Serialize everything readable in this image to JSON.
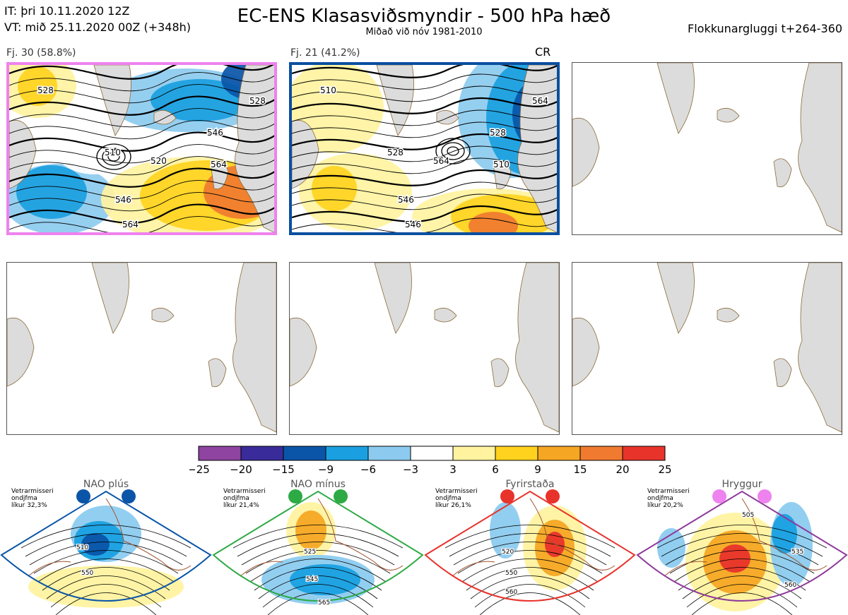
{
  "header": {
    "it_line": "IT: þri 10.11.2020 12Z",
    "vt_line": "VT: mið 25.11.2020 00Z  (+348h)",
    "title": "EC-ENS Klasasviðsmyndir - 500 hPa hæð",
    "subtitle": "Miðað við nóv 1981-2010",
    "window": "Flokkunargluggi t+264-360"
  },
  "panels": [
    {
      "label": "Fj. 30 (58.8%)",
      "tag": "",
      "border": "#ee82ee",
      "contours": [
        "528",
        "510",
        "546",
        "520",
        "564",
        "546",
        "564",
        "528"
      ]
    },
    {
      "label": "Fj. 21 (41.2%)",
      "tag": "CR",
      "border": "#0a4fa0",
      "contours": [
        "510",
        "528",
        "546",
        "564",
        "510",
        "528",
        "546",
        "564"
      ]
    },
    {
      "label": "",
      "tag": "",
      "border": "#555555",
      "contours": []
    },
    {
      "label": "",
      "tag": "",
      "border": "#555555",
      "contours": []
    },
    {
      "label": "",
      "tag": "",
      "border": "#555555",
      "contours": []
    },
    {
      "label": "",
      "tag": "",
      "border": "#555555",
      "contours": []
    }
  ],
  "colorbar": {
    "ticks": [
      "-25",
      "-20",
      "-15",
      "-9",
      "-6",
      "-3",
      "3",
      "6",
      "9",
      "15",
      "20",
      "25"
    ],
    "colors": [
      "#8e44a0",
      "#3a2b9a",
      "#0a55a8",
      "#1aa0e0",
      "#8ccbef",
      "#ffffff",
      "#fff3a0",
      "#ffd21e",
      "#f5a623",
      "#f07a30",
      "#e8332b",
      "#b0121b"
    ]
  },
  "regimes": [
    {
      "name": "NAO plús",
      "note_lines": [
        "Vetrarmisseri",
        "ondjfma",
        "líkur 32,3%"
      ],
      "border": "#0a55a8",
      "dot": "#0a55a8",
      "contours": [
        "510",
        "550"
      ]
    },
    {
      "name": "NAO mínus",
      "note_lines": [
        "Vetrarmisseri",
        "ondjfma",
        "líkur 21,4%"
      ],
      "border": "#2eaa45",
      "dot": "#2eaa45",
      "contours": [
        "525",
        "545",
        "565"
      ]
    },
    {
      "name": "Fyrirstaða",
      "note_lines": [
        "Vetrarmisseri",
        "ondjfma",
        "líkur 26,1%"
      ],
      "border": "#e8332b",
      "dot": "#e8332b",
      "contours": [
        "520",
        "550",
        "560"
      ]
    },
    {
      "name": "Hryggur",
      "note_lines": [
        "Vetrarmisseri",
        "ondjfma",
        "líkur 20,2%"
      ],
      "border": "#8e3a9a",
      "dot": "#ee82ee",
      "contours": [
        "505",
        "535",
        "560"
      ]
    }
  ],
  "chart_data": {
    "type": "heatmap",
    "title": "EC-ENS Klasasviðsmyndir - 500 hPa hæð",
    "subtitle": "Miðað við nóv 1981-2010",
    "colorbar_bounds": [
      -25,
      -20,
      -15,
      -9,
      -6,
      -3,
      3,
      6,
      9,
      15,
      20,
      25
    ],
    "clusters": [
      {
        "label": "Fj. 30 (58.8%)",
        "members": 30,
        "percent": 58.8,
        "contour_labels": [
          510,
          520,
          528,
          546,
          564
        ]
      },
      {
        "label": "Fj. 21 (41.2%)",
        "members": 21,
        "percent": 41.2,
        "contour_labels": [
          510,
          528,
          546,
          564
        ],
        "tag": "CR"
      }
    ],
    "regimes": [
      {
        "name": "NAO plús",
        "probability_percent": 32.3
      },
      {
        "name": "NAO mínus",
        "probability_percent": 21.4
      },
      {
        "name": "Fyrirstaða",
        "probability_percent": 26.1
      },
      {
        "name": "Hryggur",
        "probability_percent": 20.2
      }
    ]
  }
}
